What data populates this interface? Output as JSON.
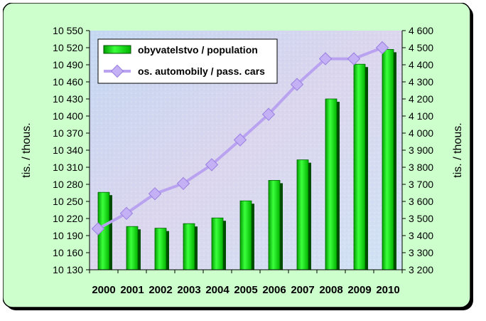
{
  "chart_data": {
    "type": "bar+line",
    "categories": [
      "2000",
      "2001",
      "2002",
      "2003",
      "2004",
      "2005",
      "2006",
      "2007",
      "2008",
      "2009",
      "2010"
    ],
    "series": [
      {
        "name": "obyvatelstvo / population",
        "type": "bar",
        "axis": "left",
        "values": [
          10266,
          10206,
          10203,
          10211,
          10221,
          10251,
          10287,
          10323,
          10430,
          10491,
          10517
        ]
      },
      {
        "name": "os. automobily / pass. cars",
        "type": "line",
        "axis": "right",
        "values": [
          3440,
          3530,
          3645,
          3705,
          3815,
          3960,
          4110,
          4285,
          4435,
          4435,
          4500
        ]
      }
    ],
    "left_axis": {
      "label": "tis. / thous.",
      "range": [
        10130,
        10550
      ],
      "ticks": [
        "10 130",
        "10 160",
        "10 190",
        "10 220",
        "10 250",
        "10 280",
        "10 310",
        "10 340",
        "10 370",
        "10 400",
        "10 430",
        "10 460",
        "10 490",
        "10 520",
        "10 550"
      ]
    },
    "right_axis": {
      "label": "tis. / thous.",
      "range": [
        3200,
        4600
      ],
      "ticks": [
        "3 200",
        "3 300",
        "3 400",
        "3 500",
        "3 600",
        "3 700",
        "3 800",
        "3 900",
        "4 000",
        "4 100",
        "4 200",
        "4 300",
        "4 400",
        "4 500",
        "4 600"
      ]
    },
    "legend_position": "top-left",
    "grid": false,
    "colors": {
      "bar": "#00c800",
      "bar_shadow": "#004d00",
      "line": "#b9a3f0",
      "card_bg": "#ccffcc",
      "plot_bg": "#cfdcf0"
    }
  }
}
